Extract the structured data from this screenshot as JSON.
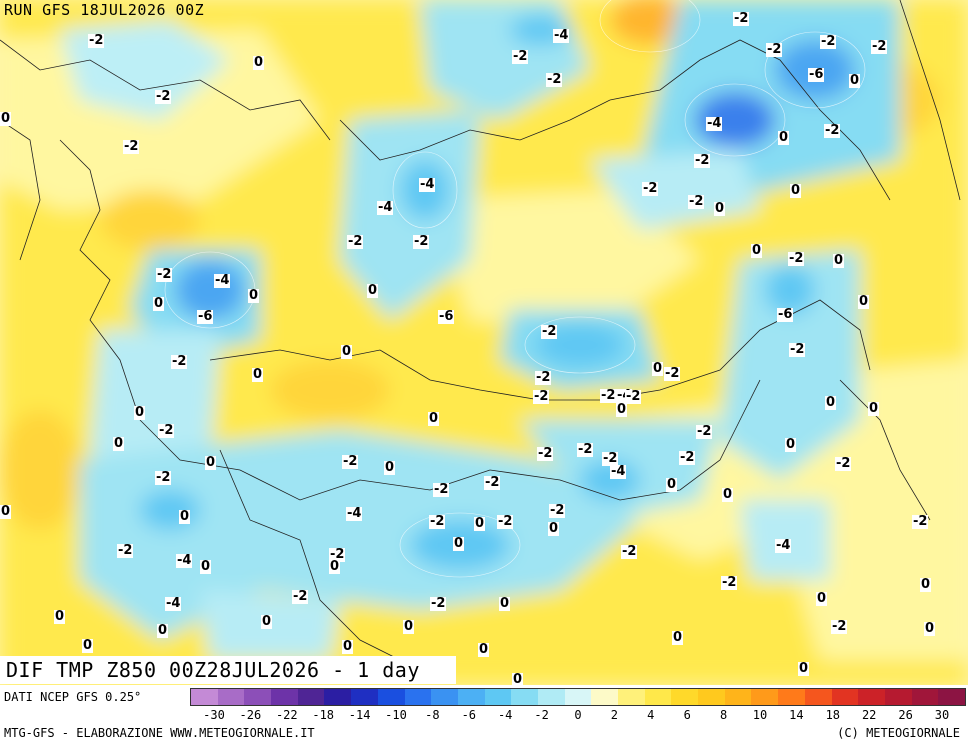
{
  "header": {
    "run_label": "RUN GFS 18JUL2026 00Z"
  },
  "map": {
    "title": "DIF TMP Z850 00Z28JUL2026 - 1 day",
    "contour_labels": [
      "-2",
      "-4",
      "-2",
      "-2",
      "-2",
      "0",
      "-2",
      "-4",
      "-6",
      "0",
      "-4",
      "-2",
      "-4",
      "-2",
      "-6",
      "0",
      "-2",
      "-2",
      "-2",
      "-2",
      "0",
      "-2",
      "-4",
      "-2",
      "-2",
      "0",
      "0",
      "-2",
      "-2",
      "0",
      "-4",
      "0",
      "-6",
      "0",
      "0",
      "-2",
      "0",
      "0",
      "-2",
      "-2",
      "0",
      "-2",
      "-2",
      "0",
      "-2",
      "-2",
      "0",
      "-4",
      "0",
      "0",
      "-2",
      "0",
      "-2",
      "0",
      "-2",
      "0",
      "0",
      "-2",
      "-2",
      "0",
      "-2",
      "-2",
      "-4",
      "0",
      "-2",
      "-2",
      "-2",
      "-2",
      "-2",
      "0",
      "-2",
      "-4",
      "-2",
      "0",
      "0",
      "-2",
      "-2",
      "-4",
      "-2",
      "0",
      "-2",
      "-2",
      "-2",
      "0",
      "-4",
      "-6",
      "-2",
      "-2",
      "-2",
      "0",
      "-2",
      "0",
      "0",
      "0",
      "0",
      "0",
      "0",
      "0",
      "0",
      "0",
      "0",
      "0",
      "0",
      "0",
      "0",
      "0",
      "0",
      "0",
      "0",
      "0",
      "0",
      "0",
      "0",
      "0",
      "0",
      "0"
    ]
  },
  "footer": {
    "source": "DATI NCEP GFS 0.25°",
    "credit": "MTG-GFS - ELABORAZIONE WWW.METEOGIORNALE.IT",
    "copyright": "(C) METEOGIORNALE"
  },
  "legend": {
    "colors": [
      "#c48ad6",
      "#a86cc7",
      "#8c4fb8",
      "#6d33a8",
      "#4f2595",
      "#2b1ea3",
      "#1f2fc2",
      "#1a4fe0",
      "#2a72ef",
      "#3a92f2",
      "#4cb0f4",
      "#5ec8f3",
      "#86dcf3",
      "#b0ebf5",
      "#d8f6f7",
      "#fdfac8",
      "#fff17a",
      "#ffe84a",
      "#ffd92a",
      "#ffc91e",
      "#ffb41a",
      "#ff9a1a",
      "#ff7a1a",
      "#f5561e",
      "#e23422",
      "#cc2228",
      "#b61a30",
      "#a0163a",
      "#8c1443"
    ],
    "tick_labels": [
      "-30",
      "-26",
      "-22",
      "-18",
      "-14",
      "-10",
      "-8",
      "-6",
      "-4",
      "-2",
      "0",
      "2",
      "4",
      "6",
      "8",
      "10",
      "14",
      "18",
      "22",
      "26",
      "30"
    ]
  }
}
